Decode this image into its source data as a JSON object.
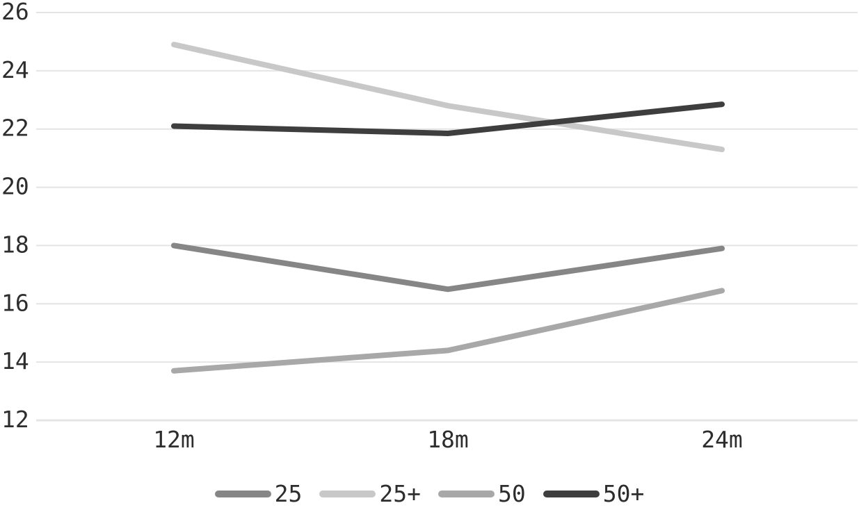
{
  "page": {
    "background_color": "#ffffff",
    "text_color": "#2d2d2d",
    "gridline_color": "#e4e4e4"
  },
  "chart_data": {
    "type": "line",
    "x": [
      "12m",
      "18m",
      "24m"
    ],
    "series": [
      {
        "name": "25",
        "color": "#868686",
        "values": [
          18.0,
          16.5,
          17.9
        ]
      },
      {
        "name": "25+",
        "color": "#c8c8c8",
        "values": [
          24.9,
          22.8,
          21.3
        ]
      },
      {
        "name": "50",
        "color": "#a8a8a8",
        "values": [
          13.7,
          14.4,
          16.45
        ]
      },
      {
        "name": "50+",
        "color": "#3e3e3e",
        "values": [
          22.1,
          21.85,
          22.85
        ]
      }
    ],
    "ylim": [
      12,
      26
    ],
    "yticks": [
      26,
      24,
      22,
      20,
      18,
      16,
      14,
      12
    ],
    "grid": true,
    "legend_position": "bottom",
    "legend_labels": [
      "25",
      "25+",
      "50",
      "50+"
    ]
  }
}
